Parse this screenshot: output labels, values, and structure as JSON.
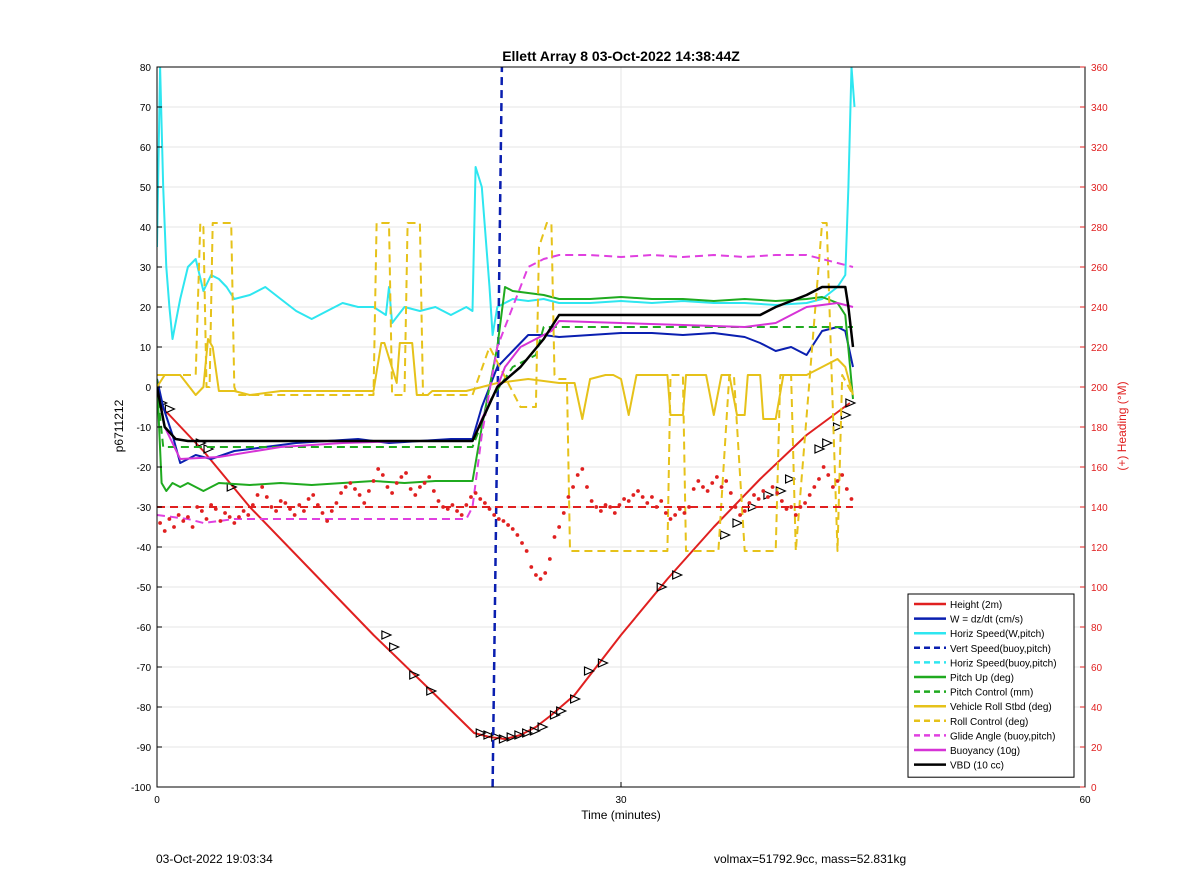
{
  "footer": {
    "timestamp": "03-Oct-2022 19:03:34",
    "summary": "volmax=51792.9cc, mass=52.831kg"
  },
  "chart_data": {
    "type": "line",
    "title": "Ellett Array 8 03-Oct-2022 14:38:44Z",
    "xlabel": "Time (minutes)",
    "ylabel": "p6711212",
    "y2label": "(+) Heading (°M)",
    "xlim": [
      0,
      60
    ],
    "ylim": [
      -100,
      80
    ],
    "y2lim": [
      0,
      360
    ],
    "xticks": [
      0,
      30,
      60
    ],
    "yticks": [
      80,
      70,
      60,
      50,
      40,
      30,
      20,
      10,
      0,
      -10,
      -20,
      -30,
      -40,
      -50,
      -60,
      -70,
      -80,
      -90,
      -100
    ],
    "y2ticks": [
      360,
      340,
      320,
      300,
      280,
      260,
      240,
      220,
      200,
      180,
      160,
      140,
      120,
      100,
      80,
      60,
      40,
      20,
      0
    ],
    "grid": true,
    "legend_location": "bottom-right",
    "legend": [
      {
        "label": "Height (2m)",
        "color": "#e02020",
        "dash": "solid"
      },
      {
        "label": "W = dz/dt (cm/s)",
        "color": "#0a1fb0",
        "dash": "solid"
      },
      {
        "label": "Horiz Speed(W,pitch)",
        "color": "#2ee6f0",
        "dash": "solid"
      },
      {
        "label": "Vert Speed(buoy,pitch)",
        "color": "#0a1fb0",
        "dash": "dashed"
      },
      {
        "label": "Horiz Speed(buoy,pitch)",
        "color": "#2ee6f0",
        "dash": "dashed"
      },
      {
        "label": "Pitch Up (deg)",
        "color": "#1faa1f",
        "dash": "solid"
      },
      {
        "label": "Pitch Control (mm)",
        "color": "#1faa1f",
        "dash": "dashed"
      },
      {
        "label": "Vehicle Roll Stbd (deg)",
        "color": "#e6c21a",
        "dash": "solid"
      },
      {
        "label": "Roll Control (deg)",
        "color": "#e6c21a",
        "dash": "dashed"
      },
      {
        "label": "Glide Angle (buoy,pitch)",
        "color": "#e040e0",
        "dash": "dashed"
      },
      {
        "label": "Buoyancy (10g)",
        "color": "#d633d6",
        "dash": "solid"
      },
      {
        "label": "VBD (10 cc)",
        "color": "#000000",
        "dash": "solid"
      }
    ],
    "series": [
      {
        "key": "height",
        "color": "#e02020",
        "dash": "solid",
        "width": 2,
        "x": [
          0,
          0.8,
          3,
          6,
          10,
          14,
          18,
          20.5,
          21.5,
          22.5,
          23.5,
          24.5,
          25.5,
          27,
          30,
          33,
          36,
          39,
          42,
          44.8
        ],
        "y": [
          -4,
          -7,
          -16,
          -30,
          -46,
          -62,
          -77,
          -86.5,
          -87.5,
          -88,
          -87,
          -85,
          -82,
          -77,
          -62,
          -48,
          -35,
          -23,
          -12,
          -4
        ]
      },
      {
        "key": "height_markers",
        "marker": "triangle",
        "color": "#000000",
        "x": [
          0.3,
          0.8,
          2.8,
          3.3,
          4.8,
          14.8,
          15.3,
          16.6,
          17.7,
          20.9,
          21.4,
          21.9,
          22.4,
          22.9,
          23.4,
          23.9,
          24.4,
          24.9,
          25.7,
          26.1,
          27.0,
          27.9,
          28.8,
          32.6,
          33.6,
          36.7,
          37.5,
          38.5,
          39.5,
          40.3,
          40.9,
          42.8,
          43.3,
          44.0,
          44.5,
          44.8
        ],
        "y": [
          -4,
          -5.5,
          -14,
          -15.5,
          -25,
          -62,
          -65,
          -72,
          -76,
          -86.5,
          -87,
          -87.5,
          -88,
          -87.5,
          -87,
          -86.5,
          -86,
          -85,
          -82,
          -81,
          -78,
          -71,
          -69,
          -50,
          -47,
          -37,
          -34,
          -30,
          -27,
          -26,
          -23,
          -15.5,
          -14,
          -10,
          -7,
          -4
        ]
      },
      {
        "key": "w",
        "color": "#0a1fb0",
        "dash": "solid",
        "width": 2,
        "x": [
          0,
          0.4,
          1,
          1.5,
          2.5,
          3.5,
          5,
          7,
          9,
          11,
          13,
          15,
          17,
          19,
          20.4,
          21,
          22,
          23,
          24,
          25,
          26,
          28,
          30,
          32,
          34,
          36,
          38,
          39,
          40,
          41,
          42,
          42.5,
          43,
          44,
          44.5,
          45
        ],
        "y": [
          2,
          -5,
          -12,
          -19,
          -17,
          -18,
          -16,
          -15,
          -14,
          -13.5,
          -13,
          -14,
          -13.5,
          -13,
          -13,
          -5,
          5,
          9,
          13,
          13,
          12.5,
          13,
          13.5,
          13.5,
          13,
          13.5,
          12.5,
          11,
          9,
          10,
          8,
          11,
          14,
          15,
          14,
          5
        ]
      },
      {
        "key": "horiz_speed",
        "color": "#2ee6f0",
        "dash": "solid",
        "width": 2,
        "x": [
          0,
          0.2,
          0.4,
          0.6,
          0.8,
          1.0,
          1.5,
          2,
          2.5,
          3,
          3.5,
          4,
          4.5,
          5,
          6,
          7,
          8,
          9,
          10,
          11,
          12,
          13,
          14,
          14.8,
          15,
          15.2,
          16,
          17,
          18,
          19,
          20,
          20.4,
          20.6,
          21,
          21.5,
          21.7,
          22,
          23,
          24,
          25,
          26,
          28,
          30,
          32,
          34,
          36,
          38,
          40,
          42,
          43,
          44,
          44.5,
          44.7,
          44.9,
          45.1
        ],
        "y": [
          35,
          80,
          50,
          30,
          20,
          12,
          22,
          30,
          32,
          24,
          28,
          27,
          25,
          22,
          23,
          25,
          22,
          19,
          17,
          19,
          21,
          20,
          20,
          18,
          25,
          16,
          20,
          19,
          20,
          18,
          20,
          19,
          55,
          50,
          25,
          13,
          20,
          22,
          21.5,
          22,
          21,
          21,
          21.5,
          21,
          21.5,
          21,
          21,
          20.5,
          21,
          22,
          25,
          28,
          50,
          80,
          70
        ]
      },
      {
        "key": "vert_speed_buoy",
        "color": "#0a1fb0",
        "dash": "dashed",
        "width": 2.5,
        "x": [
          21.7,
          22.3
        ],
        "y": [
          -100,
          80
        ]
      },
      {
        "key": "pitch_up",
        "color": "#1faa1f",
        "dash": "solid",
        "width": 2,
        "x": [
          0,
          0.3,
          0.6,
          1,
          1.5,
          2,
          3,
          4,
          6,
          8,
          10,
          12,
          14,
          16,
          18,
          20.4,
          21,
          22,
          22.5,
          23,
          24,
          25,
          26,
          28,
          30,
          32,
          34,
          36,
          38,
          40,
          42,
          43,
          44,
          44.5,
          45
        ],
        "y": [
          2,
          -24,
          -26,
          -24,
          -25,
          -24,
          -26,
          -24,
          -24.5,
          -24,
          -24.5,
          -24,
          -23.5,
          -24,
          -23.5,
          -23.5,
          -10,
          10,
          25,
          24,
          23.5,
          23,
          22,
          22,
          22.5,
          22,
          22,
          21.5,
          22,
          21.5,
          22,
          22.5,
          21,
          18,
          -3
        ]
      },
      {
        "key": "pitch_control",
        "color": "#1faa1f",
        "dash": "dashed",
        "width": 2,
        "x": [
          0,
          0.4,
          20.4,
          21.6,
          23,
          24.5,
          25,
          45
        ],
        "y": [
          0,
          -15,
          -15,
          -3,
          5,
          8,
          15,
          15
        ]
      },
      {
        "key": "vehicle_roll",
        "color": "#e6c21a",
        "dash": "solid",
        "width": 2,
        "x": [
          0,
          0.5,
          1.5,
          2.5,
          3,
          3.3,
          3.6,
          4,
          5,
          6,
          8,
          10,
          12,
          14,
          14.5,
          14.7,
          15.5,
          15.7,
          16.5,
          16.8,
          17.5,
          17.8,
          20,
          21,
          22,
          24,
          26,
          27,
          27.5,
          28,
          29,
          29.5,
          30,
          30.5,
          31,
          32,
          33,
          33.2,
          34,
          34.2,
          35,
          35.5,
          36,
          36.5,
          37,
          37.5,
          38,
          38.2,
          39,
          39.2,
          40,
          40.5,
          42,
          43,
          44,
          44.5,
          45
        ],
        "y": [
          0,
          3,
          3,
          -2,
          0,
          12,
          10,
          -1,
          -1,
          -2,
          -1,
          -1,
          -1,
          -1,
          11,
          11,
          1,
          11,
          11,
          -2,
          -2,
          -1,
          -1,
          0,
          1,
          2,
          1,
          1,
          -8,
          2,
          3,
          3,
          2,
          -7,
          3,
          3,
          3,
          -7,
          -7,
          3,
          3,
          3,
          -7,
          3,
          3,
          -7,
          -7,
          3,
          3,
          -8,
          -8,
          3,
          3,
          5,
          7,
          5,
          -2
        ]
      },
      {
        "key": "roll_control",
        "color": "#e6c21a",
        "dash": "dashed",
        "width": 2,
        "x": [
          0,
          2.5,
          2.8,
          3.0,
          3.2,
          3.4,
          3.6,
          4,
          4.6,
          4.8,
          5.0,
          5.2,
          6,
          14,
          14.2,
          15,
          15.2,
          16,
          16.2,
          17,
          17.2,
          20.4,
          21.5,
          23.5,
          24.5,
          24.7,
          25.2,
          25.5,
          25.7,
          26,
          26.5,
          26.7,
          27,
          33,
          33.2,
          33.5,
          34,
          34.2,
          36,
          36.3,
          37,
          37.3,
          38,
          38.3,
          40,
          40.3,
          41,
          41.3,
          43,
          43.3,
          44,
          44.3,
          45
        ],
        "y": [
          3,
          3,
          41,
          40,
          0,
          0,
          41,
          41,
          41,
          41,
          0,
          -2,
          -2,
          -2,
          41,
          41,
          -2,
          -2,
          41,
          41,
          -2,
          -2,
          10,
          -5,
          -5,
          35,
          41,
          41,
          3,
          2,
          2,
          -41,
          -41,
          -41,
          3,
          3,
          3,
          -41,
          -41,
          -41,
          3,
          3,
          -41,
          -41,
          -41,
          3,
          3,
          -41,
          41,
          41,
          -41,
          3,
          -2
        ]
      },
      {
        "key": "glide_angle",
        "color": "#e040e0",
        "dash": "dashed",
        "width": 2,
        "x": [
          0,
          2,
          3,
          5,
          8,
          12,
          16,
          20,
          20.4,
          21,
          22,
          23,
          24,
          25,
          26,
          28,
          30,
          32,
          34,
          36,
          38,
          40,
          42,
          44,
          45
        ],
        "y": [
          -32,
          -33,
          -34,
          -33,
          -33,
          -33,
          -33,
          -33,
          -30,
          -12,
          10,
          20,
          30,
          32,
          33,
          33,
          32.5,
          33,
          32.5,
          33,
          32.5,
          33,
          33,
          31,
          30
        ]
      },
      {
        "key": "buoyancy",
        "color": "#d633d6",
        "dash": "solid",
        "width": 2,
        "x": [
          0,
          0.5,
          1.5,
          4,
          8,
          12,
          16,
          20.4,
          21,
          22,
          22.5,
          23.5,
          24.5,
          25.5,
          26,
          30,
          34,
          38,
          40,
          42,
          44,
          45
        ],
        "y": [
          0,
          -10,
          -18,
          -17.5,
          -15,
          -14,
          -13.5,
          -13.5,
          -8,
          0,
          5,
          10,
          12,
          14,
          16.5,
          16,
          15.5,
          15,
          16,
          20,
          21,
          20
        ]
      },
      {
        "key": "vbd",
        "color": "#000000",
        "dash": "solid",
        "width": 2.5,
        "x": [
          0,
          0.5,
          1.2,
          2,
          20.4,
          22,
          23.5,
          25,
          26,
          38,
          39,
          40,
          42,
          43,
          44.5,
          44.7,
          45
        ],
        "y": [
          0,
          -10,
          -13,
          -13.5,
          -13.5,
          0,
          5,
          12,
          18,
          18,
          18,
          20,
          23,
          25,
          25,
          20,
          10
        ]
      },
      {
        "key": "heading_ref",
        "color": "#e02020",
        "dash": "dashed",
        "width": 2,
        "axis": "right",
        "x": [
          0,
          45
        ],
        "y": [
          140,
          140
        ]
      },
      {
        "key": "heading",
        "color": "#e02020",
        "marker": "dot",
        "axis": "right",
        "x": [
          0.2,
          0.5,
          0.8,
          1.1,
          1.4,
          1.7,
          2.0,
          2.3,
          2.6,
          2.9,
          3.2,
          3.5,
          3.8,
          4.1,
          4.4,
          4.7,
          5.0,
          5.3,
          5.6,
          5.9,
          6.2,
          6.5,
          6.8,
          7.1,
          7.4,
          7.7,
          8.0,
          8.3,
          8.6,
          8.9,
          9.2,
          9.5,
          9.8,
          10.1,
          10.4,
          10.7,
          11.0,
          11.3,
          11.6,
          11.9,
          12.2,
          12.5,
          12.8,
          13.1,
          13.4,
          13.7,
          14.0,
          14.3,
          14.6,
          14.9,
          15.2,
          15.5,
          15.8,
          16.1,
          16.4,
          16.7,
          17.0,
          17.3,
          17.6,
          17.9,
          18.2,
          18.5,
          18.8,
          19.1,
          19.4,
          19.7,
          20.0,
          20.3,
          20.6,
          20.9,
          21.2,
          21.5,
          21.8,
          22.1,
          22.4,
          22.7,
          23.0,
          23.3,
          23.6,
          23.9,
          24.2,
          24.5,
          24.8,
          25.1,
          25.4,
          25.7,
          26.0,
          26.3,
          26.6,
          26.9,
          27.2,
          27.5,
          27.8,
          28.1,
          28.4,
          28.7,
          29.0,
          29.3,
          29.6,
          29.9,
          30.2,
          30.5,
          30.8,
          31.1,
          31.4,
          31.7,
          32.0,
          32.3,
          32.6,
          32.9,
          33.2,
          33.5,
          33.8,
          34.1,
          34.4,
          34.7,
          35.0,
          35.3,
          35.6,
          35.9,
          36.2,
          36.5,
          36.8,
          37.1,
          37.4,
          37.7,
          38.0,
          38.3,
          38.6,
          38.9,
          39.2,
          39.5,
          39.8,
          40.1,
          40.4,
          40.7,
          41.0,
          41.3,
          41.6,
          41.9,
          42.2,
          42.5,
          42.8,
          43.1,
          43.4,
          43.7,
          44.0,
          44.3,
          44.6,
          44.9
        ],
        "y": [
          132,
          128,
          134,
          130,
          136,
          133,
          135,
          130,
          140,
          138,
          134,
          141,
          139,
          133,
          137,
          135,
          132,
          135,
          138,
          136,
          141,
          146,
          150,
          145,
          140,
          138,
          143,
          142,
          139,
          136,
          141,
          138,
          144,
          146,
          141,
          137,
          133,
          138,
          142,
          147,
          150,
          152,
          149,
          146,
          142,
          148,
          153,
          159,
          156,
          150,
          147,
          152,
          155,
          157,
          149,
          146,
          150,
          152,
          155,
          148,
          143,
          140,
          139,
          141,
          138,
          136,
          141,
          145,
          147,
          144,
          142,
          139,
          136,
          134,
          133,
          131,
          129,
          126,
          122,
          118,
          110,
          106,
          104,
          107,
          114,
          125,
          130,
          137,
          145,
          150,
          156,
          159,
          150,
          143,
          140,
          138,
          141,
          140,
          137,
          141,
          144,
          143,
          146,
          148,
          145,
          142,
          145,
          140,
          143,
          137,
          134,
          136,
          139,
          137,
          140,
          149,
          153,
          150,
          148,
          152,
          155,
          150,
          153,
          147,
          140,
          136,
          138,
          142,
          146,
          144,
          148,
          145,
          150,
          147,
          143,
          139,
          140,
          136,
          140,
          142,
          146,
          150,
          154,
          160,
          156,
          150,
          153,
          156,
          149,
          144
        ]
      }
    ]
  }
}
